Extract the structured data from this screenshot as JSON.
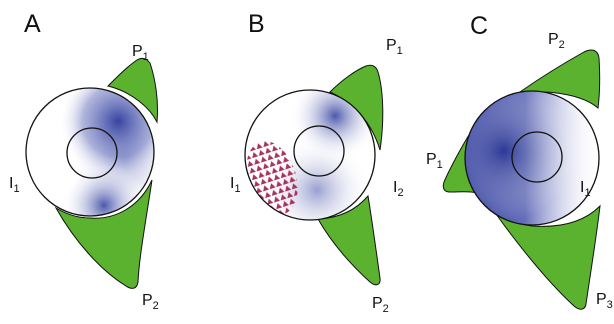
{
  "colors": {
    "lobe_green": "#5bb22f",
    "gradient_blue": "#2c3a9c",
    "triangle_red": "#a8335c",
    "outline": "#111111"
  },
  "panels": [
    {
      "letter": "A",
      "labels": [
        {
          "base": "P",
          "sub": "1"
        },
        {
          "base": "I",
          "sub": "1"
        },
        {
          "base": "P",
          "sub": "2"
        }
      ]
    },
    {
      "letter": "B",
      "labels": [
        {
          "base": "P",
          "sub": "1"
        },
        {
          "base": "I",
          "sub": "1"
        },
        {
          "base": "I",
          "sub": "2"
        },
        {
          "base": "P",
          "sub": "2"
        }
      ]
    },
    {
      "letter": "C",
      "labels": [
        {
          "base": "P",
          "sub": "2"
        },
        {
          "base": "P",
          "sub": "1"
        },
        {
          "base": "I",
          "sub": "1"
        },
        {
          "base": "P",
          "sub": "3"
        }
      ]
    }
  ]
}
